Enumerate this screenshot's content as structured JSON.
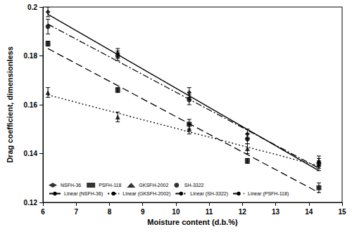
{
  "chart_data": {
    "type": "scatter",
    "x_label": "Moisture content (d.b.%)",
    "y_label": "Drag coefficient, dimensionless",
    "x": [
      6.15,
      8.25,
      10.4,
      12.15,
      14.3
    ],
    "xlim": [
      6,
      15
    ],
    "xticks": [
      6,
      7,
      8,
      9,
      10,
      11,
      12,
      13,
      14,
      15
    ],
    "ylim": [
      0.12,
      0.2
    ],
    "yticks": [
      0.12,
      0.14,
      0.16,
      0.18,
      0.2
    ],
    "grid": false,
    "legend": "lower left",
    "series": [
      {
        "name": "NSFH-36",
        "type": "scatter",
        "marker": "diamond",
        "color": "#000000",
        "values": [
          0.198,
          0.181,
          0.165,
          0.148,
          0.135
        ],
        "errors": [
          0.002,
          0.002,
          0.002,
          0.002,
          0.002
        ]
      },
      {
        "name": "PSFH-118",
        "type": "scatter",
        "marker": "square",
        "color": "#000000",
        "values": [
          0.185,
          0.166,
          0.152,
          0.137,
          0.126
        ],
        "errors": [
          0.001,
          0.001,
          0.002,
          0.001,
          0.002
        ]
      },
      {
        "name": "GKSFH-2002",
        "type": "scatter",
        "marker": "triangle",
        "color": "#000000",
        "values": [
          0.165,
          0.155,
          0.15,
          0.142,
          0.137
        ],
        "errors": [
          0.002,
          0.002,
          0.002,
          0.002,
          0.002
        ]
      },
      {
        "name": "SH-3322",
        "type": "scatter",
        "marker": "circle",
        "color": "#000000",
        "values": [
          0.192,
          0.18,
          0.162,
          0.146,
          0.136
        ],
        "errors": [
          0.003,
          0.002,
          0.002,
          0.002,
          0.002
        ]
      },
      {
        "name": "Linear (NSFH-36)",
        "type": "line",
        "line_style": "solid",
        "color": "#000000",
        "x": [
          6.15,
          14.3
        ],
        "values": [
          0.197,
          0.133
        ]
      },
      {
        "name": "Linear (GKSFH-2002)",
        "type": "line",
        "line_style": "dotted",
        "color": "#000000",
        "x": [
          6.15,
          14.3
        ],
        "values": [
          0.164,
          0.135
        ]
      },
      {
        "name": "Linear (SH-3322)",
        "type": "line",
        "line_style": "dashdot",
        "color": "#000000",
        "x": [
          6.15,
          14.3
        ],
        "values": [
          0.193,
          0.134
        ]
      },
      {
        "name": "Linear (PSFH-118)",
        "type": "line",
        "line_style": "dashed",
        "color": "#000000",
        "x": [
          6.15,
          14.3
        ],
        "values": [
          0.183,
          0.124
        ]
      }
    ]
  }
}
